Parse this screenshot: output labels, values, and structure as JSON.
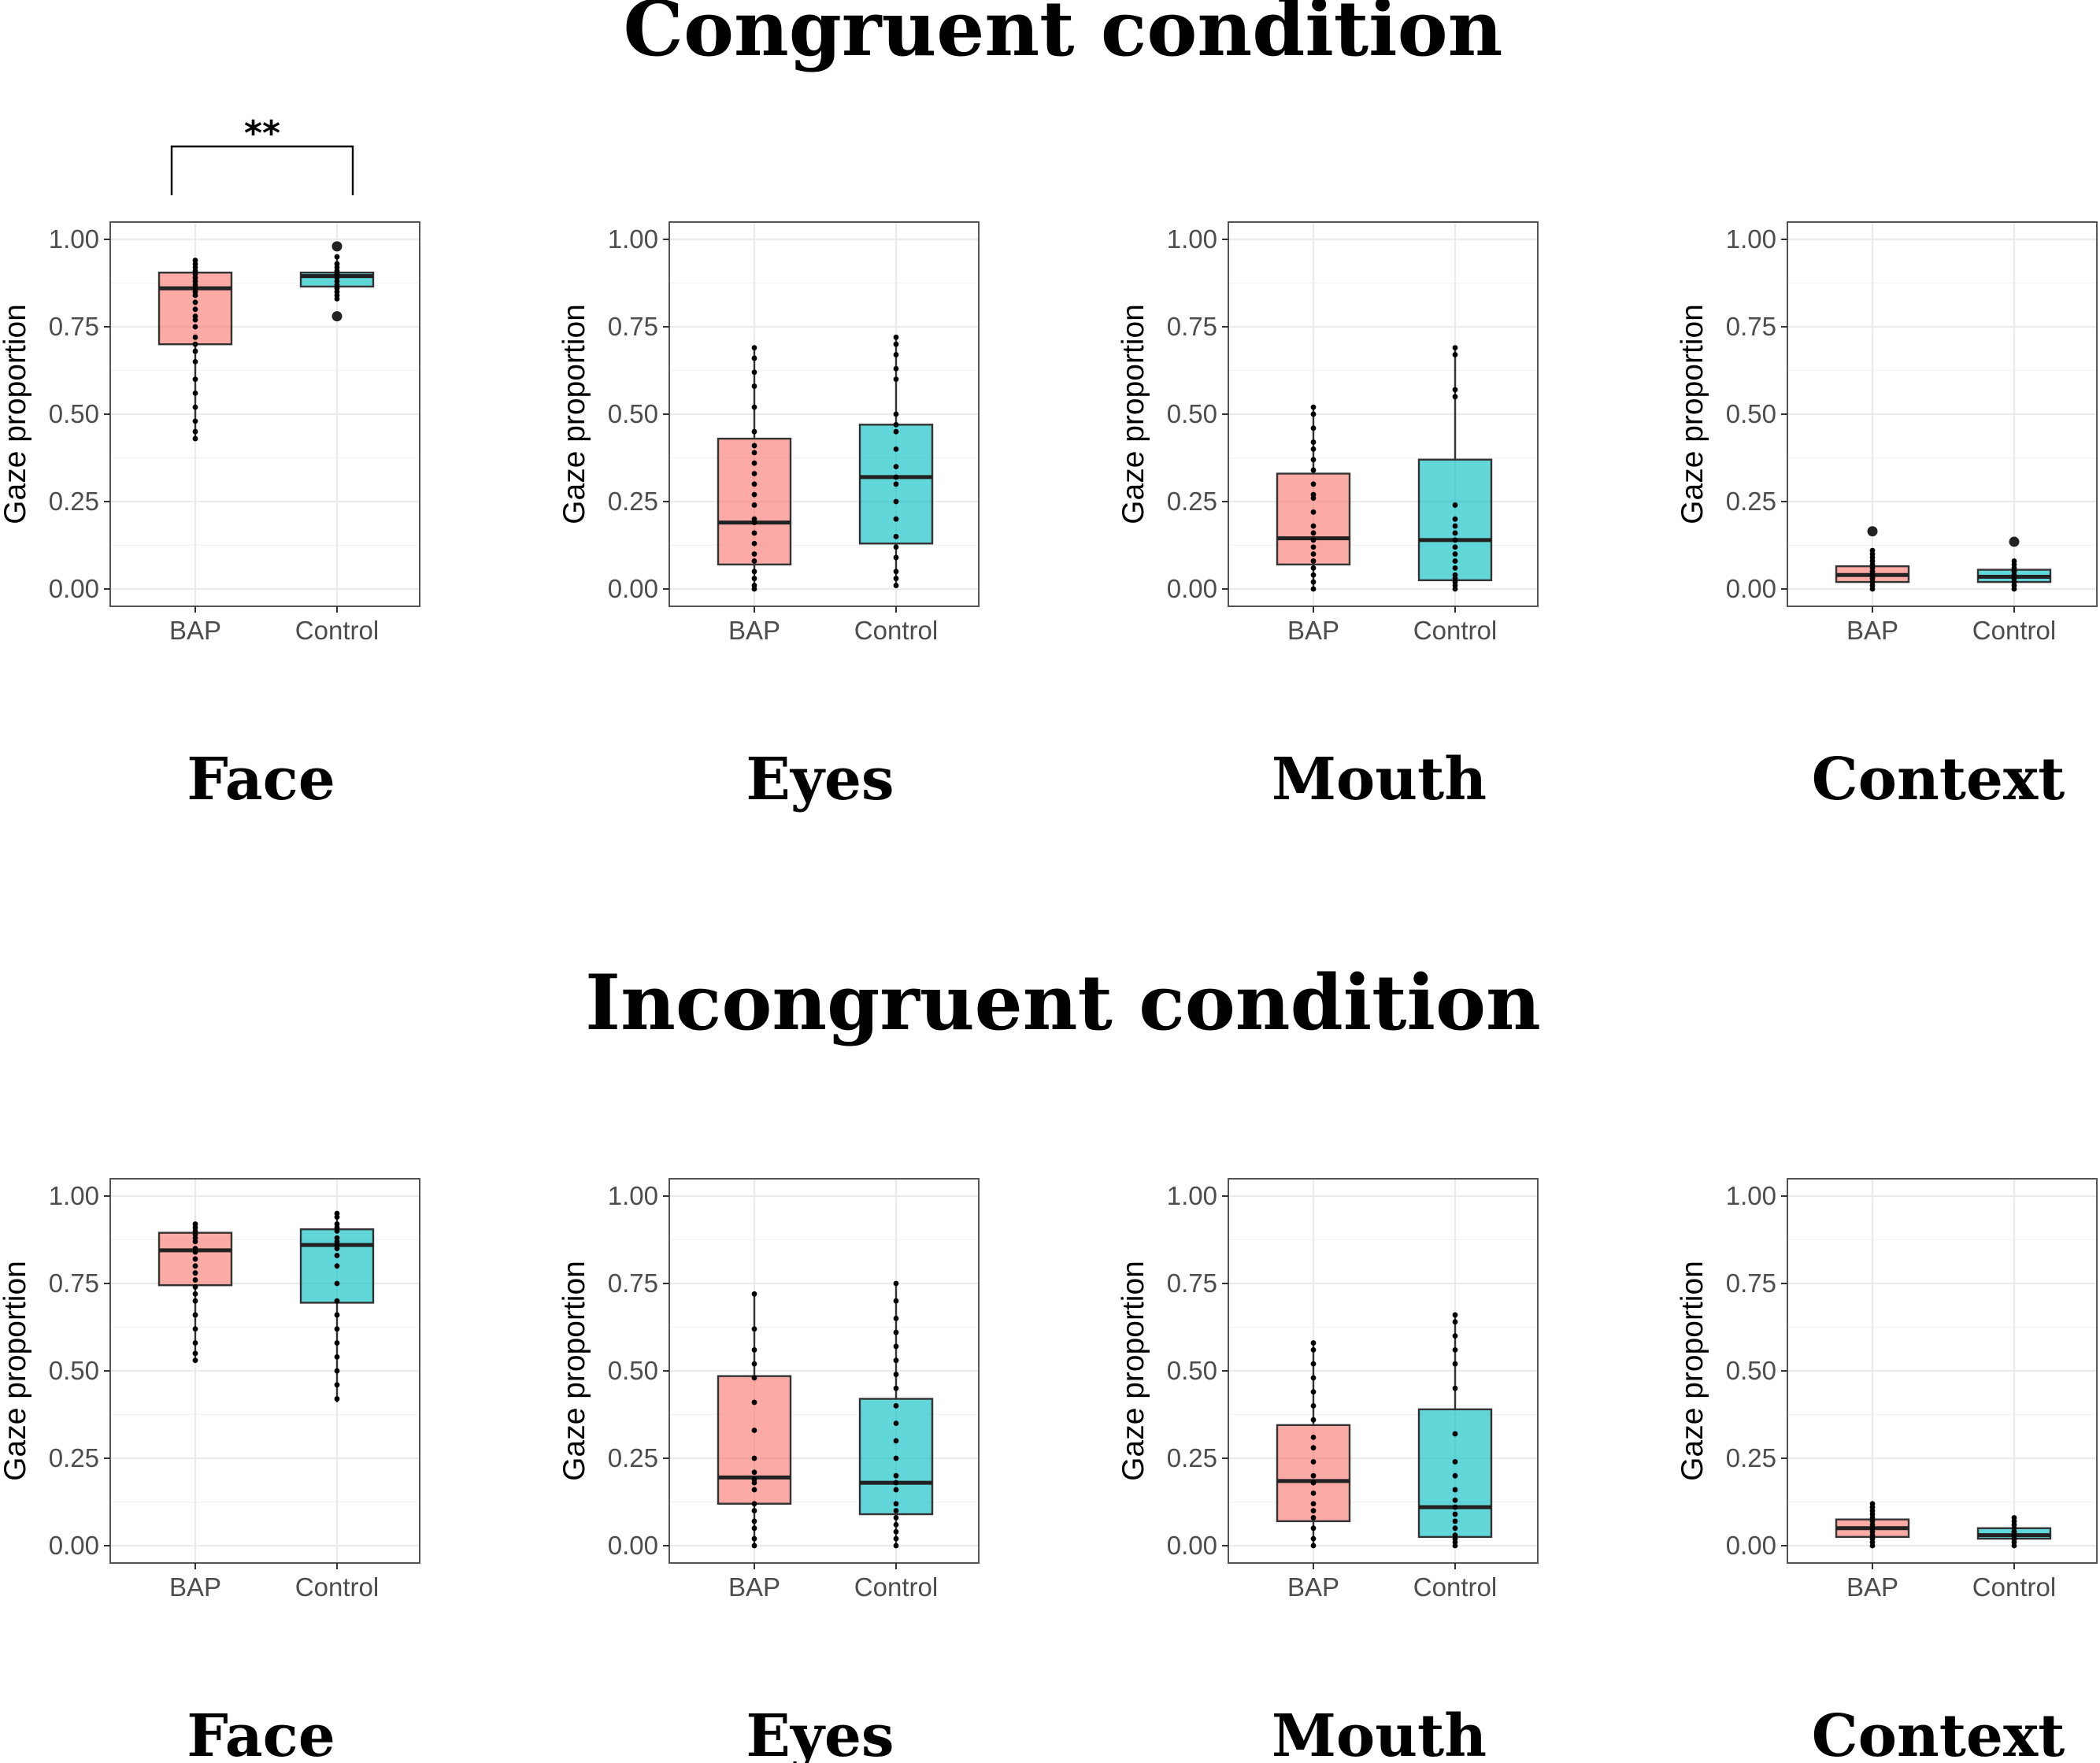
{
  "figure": {
    "conditions": [
      {
        "key": "congruent",
        "title": "Congruent condition"
      },
      {
        "key": "incongruent",
        "title": "Incongruent condition"
      }
    ],
    "colors": {
      "BAP": "#F8766D",
      "Control": "#00BFC4",
      "median": "#222222",
      "point": "#000000"
    }
  },
  "chart_data": [
    {
      "type": "box",
      "condition": "Congruent condition",
      "region": "Face",
      "ylabel": "Gaze proportion",
      "ylim": [
        0,
        1
      ],
      "yticks": [
        "0.00",
        "0.25",
        "0.50",
        "0.75",
        "1.00"
      ],
      "categories": [
        "BAP",
        "Control"
      ],
      "significance": {
        "between": [
          "BAP",
          "Control"
        ],
        "label": "**"
      },
      "series": [
        {
          "name": "BAP",
          "q1": 0.7,
          "median": 0.86,
          "q3": 0.905,
          "whisker_low": 0.43,
          "whisker_high": 0.94,
          "outliers": [],
          "points": [
            0.94,
            0.93,
            0.92,
            0.91,
            0.9,
            0.89,
            0.88,
            0.87,
            0.86,
            0.85,
            0.84,
            0.82,
            0.8,
            0.78,
            0.77,
            0.75,
            0.72,
            0.7,
            0.68,
            0.65,
            0.6,
            0.56,
            0.52,
            0.48,
            0.45,
            0.43
          ]
        },
        {
          "name": "Control",
          "q1": 0.865,
          "median": 0.895,
          "q3": 0.905,
          "whisker_low": 0.83,
          "whisker_high": 0.95,
          "outliers": [
            0.98,
            0.78
          ],
          "points": [
            0.95,
            0.93,
            0.92,
            0.91,
            0.9,
            0.9,
            0.89,
            0.88,
            0.87,
            0.86,
            0.85,
            0.84,
            0.83
          ]
        }
      ]
    },
    {
      "type": "box",
      "condition": "Congruent condition",
      "region": "Eyes",
      "ylabel": "Gaze proportion",
      "ylim": [
        0,
        1
      ],
      "yticks": [
        "0.00",
        "0.25",
        "0.50",
        "0.75",
        "1.00"
      ],
      "categories": [
        "BAP",
        "Control"
      ],
      "series": [
        {
          "name": "BAP",
          "q1": 0.07,
          "median": 0.19,
          "q3": 0.43,
          "whisker_low": 0.0,
          "whisker_high": 0.69,
          "outliers": [],
          "points": [
            0.69,
            0.66,
            0.62,
            0.58,
            0.52,
            0.45,
            0.41,
            0.39,
            0.36,
            0.33,
            0.3,
            0.27,
            0.24,
            0.2,
            0.19,
            0.16,
            0.13,
            0.1,
            0.08,
            0.05,
            0.03,
            0.01,
            0.0
          ]
        },
        {
          "name": "Control",
          "q1": 0.13,
          "median": 0.32,
          "q3": 0.47,
          "whisker_low": 0.01,
          "whisker_high": 0.72,
          "outliers": [],
          "points": [
            0.72,
            0.7,
            0.67,
            0.63,
            0.6,
            0.5,
            0.47,
            0.45,
            0.4,
            0.35,
            0.32,
            0.3,
            0.25,
            0.2,
            0.15,
            0.12,
            0.09,
            0.05,
            0.03,
            0.01
          ]
        }
      ]
    },
    {
      "type": "box",
      "condition": "Congruent condition",
      "region": "Mouth",
      "ylabel": "Gaze proportion",
      "ylim": [
        0,
        1
      ],
      "yticks": [
        "0.00",
        "0.25",
        "0.50",
        "0.75",
        "1.00"
      ],
      "categories": [
        "BAP",
        "Control"
      ],
      "series": [
        {
          "name": "BAP",
          "q1": 0.07,
          "median": 0.145,
          "q3": 0.33,
          "whisker_low": 0.0,
          "whisker_high": 0.52,
          "outliers": [],
          "points": [
            0.52,
            0.5,
            0.46,
            0.42,
            0.4,
            0.37,
            0.34,
            0.3,
            0.27,
            0.26,
            0.22,
            0.18,
            0.16,
            0.14,
            0.12,
            0.1,
            0.08,
            0.06,
            0.04,
            0.02,
            0.0
          ]
        },
        {
          "name": "Control",
          "q1": 0.025,
          "median": 0.14,
          "q3": 0.37,
          "whisker_low": 0.0,
          "whisker_high": 0.69,
          "outliers": [],
          "points": [
            0.69,
            0.67,
            0.57,
            0.55,
            0.24,
            0.2,
            0.18,
            0.16,
            0.14,
            0.12,
            0.1,
            0.08,
            0.06,
            0.04,
            0.03,
            0.02,
            0.01,
            0.0
          ]
        }
      ]
    },
    {
      "type": "box",
      "condition": "Congruent condition",
      "region": "Context",
      "ylabel": "Gaze proportion",
      "ylim": [
        0,
        1
      ],
      "yticks": [
        "0.00",
        "0.25",
        "0.50",
        "0.75",
        "1.00"
      ],
      "categories": [
        "BAP",
        "Control"
      ],
      "series": [
        {
          "name": "BAP",
          "q1": 0.02,
          "median": 0.04,
          "q3": 0.065,
          "whisker_low": 0.0,
          "whisker_high": 0.11,
          "outliers": [
            0.165
          ],
          "points": [
            0.11,
            0.1,
            0.09,
            0.08,
            0.07,
            0.06,
            0.05,
            0.05,
            0.04,
            0.04,
            0.03,
            0.03,
            0.02,
            0.02,
            0.01,
            0.0
          ]
        },
        {
          "name": "Control",
          "q1": 0.02,
          "median": 0.035,
          "q3": 0.055,
          "whisker_low": 0.0,
          "whisker_high": 0.08,
          "outliers": [
            0.135
          ],
          "points": [
            0.08,
            0.07,
            0.06,
            0.05,
            0.05,
            0.04,
            0.04,
            0.03,
            0.03,
            0.02,
            0.02,
            0.01,
            0.0
          ]
        }
      ]
    },
    {
      "type": "box",
      "condition": "Incongruent condition",
      "region": "Face",
      "ylabel": "Gaze proportion",
      "ylim": [
        0,
        1
      ],
      "yticks": [
        "0.00",
        "0.25",
        "0.50",
        "0.75",
        "1.00"
      ],
      "categories": [
        "BAP",
        "Control"
      ],
      "series": [
        {
          "name": "BAP",
          "q1": 0.745,
          "median": 0.845,
          "q3": 0.895,
          "whisker_low": 0.525,
          "whisker_high": 0.92,
          "outliers": [],
          "points": [
            0.92,
            0.91,
            0.9,
            0.89,
            0.88,
            0.87,
            0.85,
            0.84,
            0.82,
            0.8,
            0.78,
            0.76,
            0.74,
            0.72,
            0.7,
            0.66,
            0.62,
            0.58,
            0.55,
            0.53
          ]
        },
        {
          "name": "Control",
          "q1": 0.695,
          "median": 0.86,
          "q3": 0.905,
          "whisker_low": 0.41,
          "whisker_high": 0.955,
          "outliers": [],
          "points": [
            0.95,
            0.94,
            0.92,
            0.91,
            0.9,
            0.88,
            0.87,
            0.86,
            0.85,
            0.83,
            0.8,
            0.75,
            0.7,
            0.66,
            0.62,
            0.58,
            0.54,
            0.5,
            0.46,
            0.42
          ]
        }
      ]
    },
    {
      "type": "box",
      "condition": "Incongruent condition",
      "region": "Eyes",
      "ylabel": "Gaze proportion",
      "ylim": [
        0,
        1
      ],
      "yticks": [
        "0.00",
        "0.25",
        "0.50",
        "0.75",
        "1.00"
      ],
      "categories": [
        "BAP",
        "Control"
      ],
      "series": [
        {
          "name": "BAP",
          "q1": 0.12,
          "median": 0.195,
          "q3": 0.485,
          "whisker_low": 0.0,
          "whisker_high": 0.72,
          "outliers": [],
          "points": [
            0.72,
            0.62,
            0.56,
            0.52,
            0.48,
            0.41,
            0.33,
            0.25,
            0.21,
            0.19,
            0.18,
            0.16,
            0.12,
            0.1,
            0.07,
            0.05,
            0.02,
            0.0
          ]
        },
        {
          "name": "Control",
          "q1": 0.09,
          "median": 0.18,
          "q3": 0.42,
          "whisker_low": 0.0,
          "whisker_high": 0.75,
          "outliers": [],
          "points": [
            0.75,
            0.7,
            0.65,
            0.61,
            0.57,
            0.53,
            0.49,
            0.45,
            0.4,
            0.35,
            0.3,
            0.25,
            0.2,
            0.18,
            0.16,
            0.12,
            0.1,
            0.08,
            0.06,
            0.04,
            0.02,
            0.0
          ]
        }
      ]
    },
    {
      "type": "box",
      "condition": "Incongruent condition",
      "region": "Mouth",
      "ylabel": "Gaze proportion",
      "ylim": [
        0,
        1
      ],
      "yticks": [
        "0.00",
        "0.25",
        "0.50",
        "0.75",
        "1.00"
      ],
      "categories": [
        "BAP",
        "Control"
      ],
      "series": [
        {
          "name": "BAP",
          "q1": 0.07,
          "median": 0.185,
          "q3": 0.345,
          "whisker_low": 0.0,
          "whisker_high": 0.58,
          "outliers": [],
          "points": [
            0.58,
            0.56,
            0.52,
            0.48,
            0.44,
            0.4,
            0.36,
            0.31,
            0.28,
            0.24,
            0.2,
            0.18,
            0.15,
            0.12,
            0.1,
            0.08,
            0.05,
            0.02,
            0.0
          ]
        },
        {
          "name": "Control",
          "q1": 0.025,
          "median": 0.11,
          "q3": 0.39,
          "whisker_low": 0.0,
          "whisker_high": 0.66,
          "outliers": [],
          "points": [
            0.66,
            0.64,
            0.6,
            0.56,
            0.52,
            0.45,
            0.32,
            0.24,
            0.2,
            0.16,
            0.13,
            0.11,
            0.09,
            0.07,
            0.05,
            0.03,
            0.02,
            0.01,
            0.0
          ]
        }
      ]
    },
    {
      "type": "box",
      "condition": "Incongruent condition",
      "region": "Context",
      "ylabel": "Gaze proportion",
      "ylim": [
        0,
        1
      ],
      "yticks": [
        "0.00",
        "0.25",
        "0.50",
        "0.75",
        "1.00"
      ],
      "categories": [
        "BAP",
        "Control"
      ],
      "series": [
        {
          "name": "BAP",
          "q1": 0.025,
          "median": 0.05,
          "q3": 0.075,
          "whisker_low": 0.0,
          "whisker_high": 0.125,
          "outliers": [],
          "points": [
            0.12,
            0.11,
            0.1,
            0.09,
            0.08,
            0.07,
            0.06,
            0.05,
            0.05,
            0.04,
            0.03,
            0.02,
            0.01,
            0.0
          ]
        },
        {
          "name": "Control",
          "q1": 0.02,
          "median": 0.03,
          "q3": 0.05,
          "whisker_low": 0.0,
          "whisker_high": 0.08,
          "outliers": [],
          "points": [
            0.08,
            0.07,
            0.06,
            0.05,
            0.04,
            0.04,
            0.03,
            0.03,
            0.02,
            0.02,
            0.01,
            0.0
          ]
        }
      ]
    }
  ]
}
